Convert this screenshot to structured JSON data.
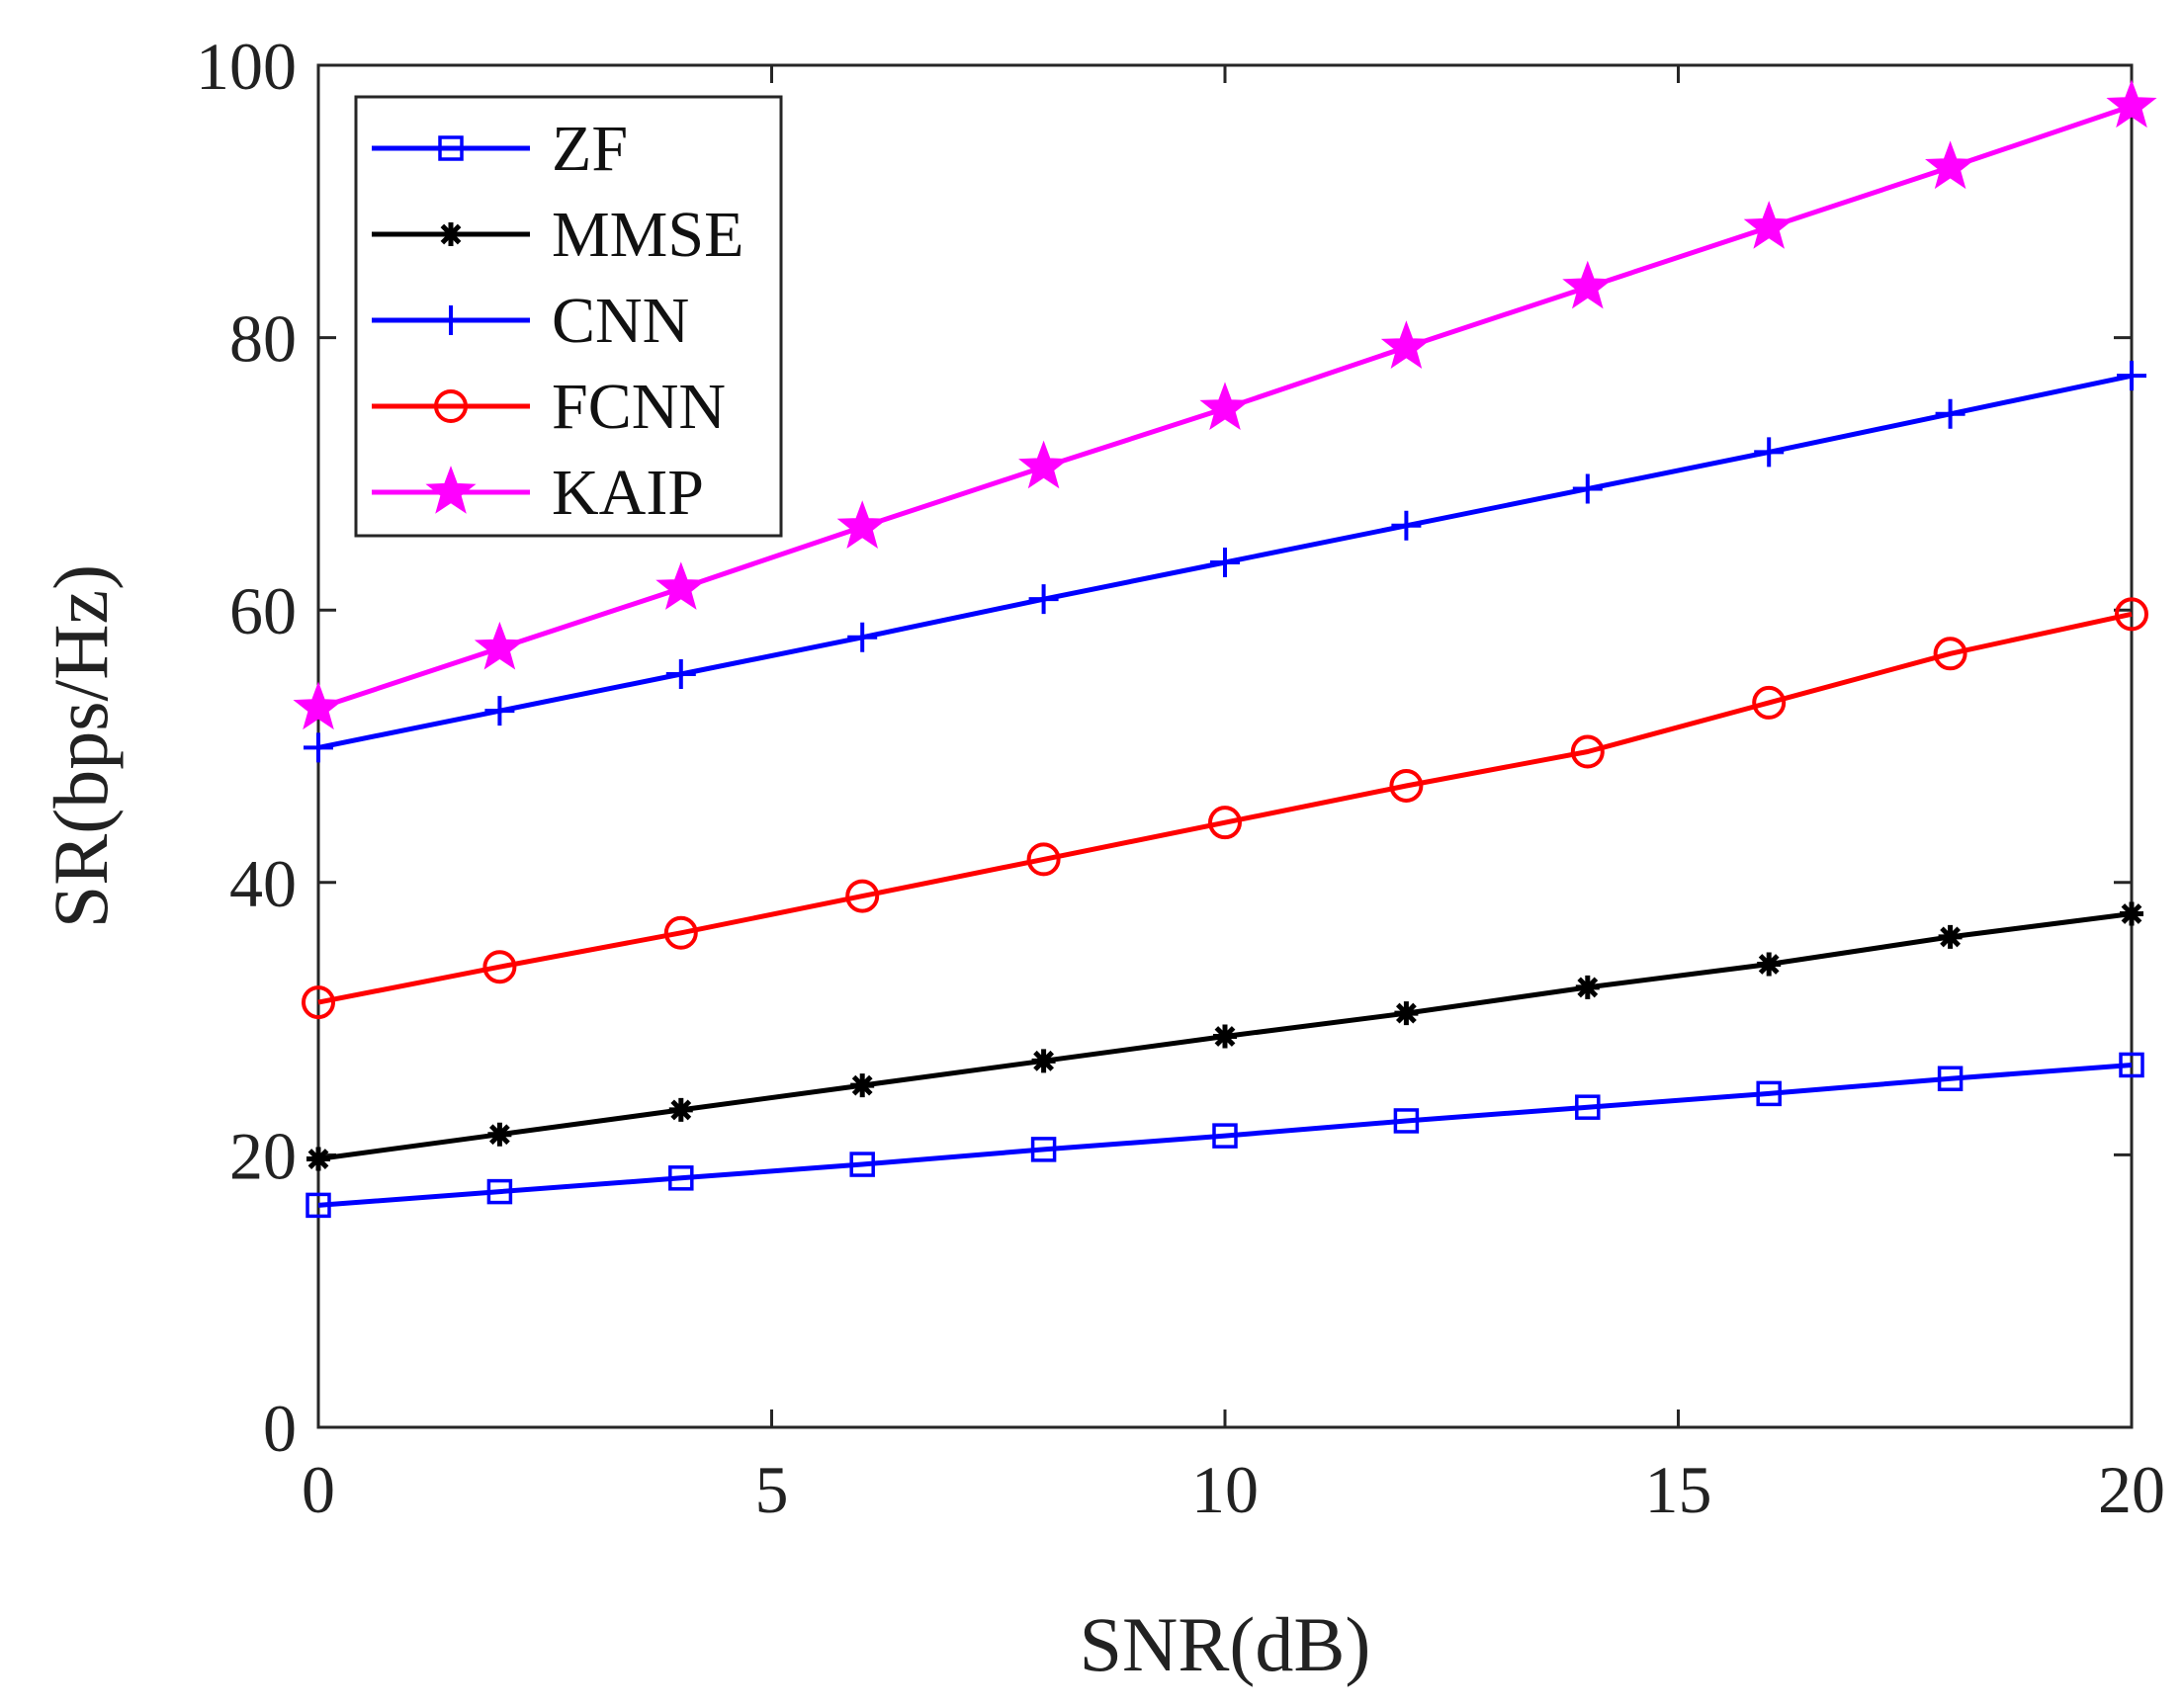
{
  "chart_data": {
    "type": "line",
    "title": "",
    "xlabel": "SNR(dB)",
    "ylabel": "SR(bps/Hz)",
    "xlim": [
      0,
      20
    ],
    "ylim": [
      0,
      100
    ],
    "xticks": [
      0,
      5,
      10,
      15,
      20
    ],
    "yticks": [
      0,
      20,
      40,
      60,
      80,
      100
    ],
    "x": [
      0,
      2,
      4,
      6,
      8,
      10,
      12,
      14,
      16,
      18,
      20
    ],
    "grid": false,
    "legend_position": "top-left",
    "series": [
      {
        "name": "ZF",
        "color": "#0000ff",
        "marker": "square",
        "values": [
          16.3,
          17.3,
          18.3,
          19.3,
          20.4,
          21.4,
          22.5,
          23.5,
          24.5,
          25.6,
          26.6
        ]
      },
      {
        "name": "MMSE",
        "color": "#000000",
        "marker": "asterisk",
        "values": [
          19.7,
          21.5,
          23.3,
          25.1,
          26.9,
          28.7,
          30.4,
          32.3,
          34.0,
          36.0,
          37.7
        ]
      },
      {
        "name": "CNN",
        "color": "#0000ff",
        "marker": "plus",
        "values": [
          49.9,
          52.6,
          55.3,
          58.0,
          60.8,
          63.5,
          66.2,
          68.9,
          71.6,
          74.4,
          77.2
        ]
      },
      {
        "name": "FCNN",
        "color": "#ff0000",
        "marker": "circle",
        "values": [
          31.2,
          33.8,
          36.3,
          39.0,
          41.7,
          44.4,
          47.1,
          49.6,
          53.2,
          56.8,
          59.7
        ]
      },
      {
        "name": "KAIP",
        "color": "#ff00ff",
        "marker": "star",
        "values": [
          52.8,
          57.2,
          61.6,
          66.1,
          70.5,
          74.8,
          79.3,
          83.7,
          88.1,
          92.5,
          97.0
        ]
      }
    ]
  }
}
